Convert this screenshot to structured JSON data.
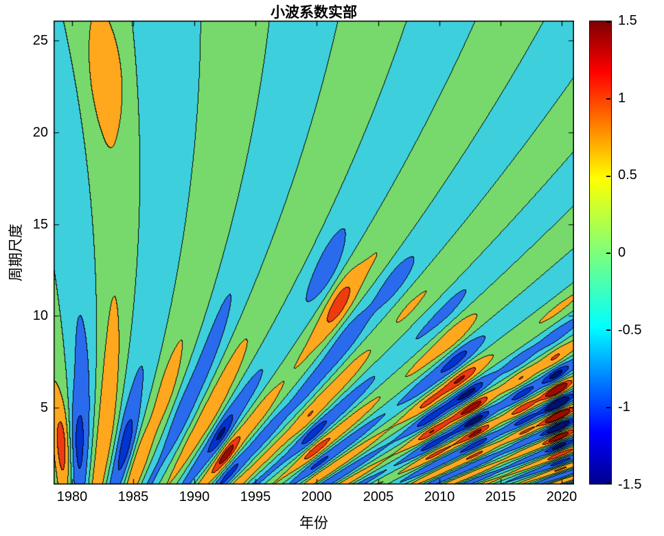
{
  "chart_data": {
    "type": "contour",
    "title": "小波系数实部",
    "xlabel": "年份",
    "ylabel": "周期尺度",
    "x_range": [
      1978.5,
      2021.0
    ],
    "y_range": [
      0.8,
      26.1
    ],
    "z_range": [
      -1.5,
      1.5
    ],
    "x_ticks": [
      "1980",
      "1985",
      "1990",
      "1995",
      "2000",
      "2005",
      "2010",
      "2015",
      "2020"
    ],
    "x_tick_values": [
      1980,
      1985,
      1990,
      1995,
      2000,
      2005,
      2010,
      2015,
      2020
    ],
    "y_ticks": [
      "5",
      "10",
      "15",
      "20",
      "25"
    ],
    "y_tick_values": [
      5,
      10,
      15,
      20,
      25
    ],
    "grid": false,
    "axis_color": "#000000",
    "line_color": "#000000",
    "levels": [
      -1.3,
      -1.0,
      -0.5,
      0.0,
      0.5,
      1.0,
      1.3
    ],
    "fill_colors": [
      "#001173",
      "#0033d1",
      "#2a6bee",
      "#3ecfdd",
      "#77d96b",
      "#ffa81e",
      "#ef3a10",
      "#9e0b00"
    ],
    "colorbar": {
      "position": "right",
      "colormap": "jet",
      "ticks": [
        "1.5",
        "1",
        "0.5",
        "0",
        "-0.5",
        "-1",
        "-1.5"
      ],
      "tick_values": [
        1.5,
        1.0,
        0.5,
        0.0,
        -0.5,
        -1.0,
        -1.5
      ],
      "stops": [
        {
          "pos": 0.0,
          "color": "#00008f"
        },
        {
          "pos": 0.11,
          "color": "#0000ff"
        },
        {
          "pos": 0.34,
          "color": "#00ffff"
        },
        {
          "pos": 0.5,
          "color": "#7dff7a"
        },
        {
          "pos": 0.66,
          "color": "#ffff00"
        },
        {
          "pos": 0.89,
          "color": "#ff0000"
        },
        {
          "pos": 1.0,
          "color": "#7f0000"
        }
      ]
    },
    "field_approximation": {
      "description": "Synthetic reconstruction of the real part of the wavelet coefficients: z(t,s)=E(t,s)*cos(2*pi*(t-t_ref)/(p0+p1*s)+phase_per_scale*s), clamped to [-1.5,1.5]",
      "t_ref": 1979.3,
      "p0": 2.6,
      "p1": 0.33,
      "phase_per_scale": 0.18,
      "base0": 0.42,
      "base1": 0.42,
      "base_s": 3.0,
      "base_w": 6.5,
      "mod_base": 0.82,
      "mod_amp": 0.22,
      "mod_t": 1980,
      "mod_period": 9.5,
      "hotspots": [
        [
          1979.6,
          3.2,
          1.15,
          1.1,
          2.2
        ],
        [
          1985.0,
          2.8,
          0.75,
          1.3,
          2.0
        ],
        [
          1988.0,
          5.5,
          0.45,
          1.5,
          2.5
        ],
        [
          1992.6,
          2.8,
          0.65,
          1.2,
          1.8
        ],
        [
          1996.0,
          4.0,
          0.45,
          1.5,
          2.2
        ],
        [
          1999.5,
          3.2,
          0.55,
          1.3,
          2.0
        ],
        [
          2001.8,
          11.0,
          0.7,
          1.8,
          2.4
        ],
        [
          2006.2,
          12.0,
          0.7,
          1.8,
          2.4
        ],
        [
          2009.0,
          4.0,
          0.6,
          1.4,
          2.2
        ],
        [
          2011.5,
          7.0,
          0.5,
          1.5,
          2.5
        ],
        [
          2013.2,
          4.5,
          0.9,
          1.3,
          2.4
        ],
        [
          2016.6,
          5.2,
          1.1,
          1.3,
          2.6
        ],
        [
          2019.6,
          5.0,
          1.15,
          1.1,
          2.6
        ],
        [
          1983.3,
          23.0,
          0.4,
          2.8,
          3.0
        ]
      ]
    }
  }
}
